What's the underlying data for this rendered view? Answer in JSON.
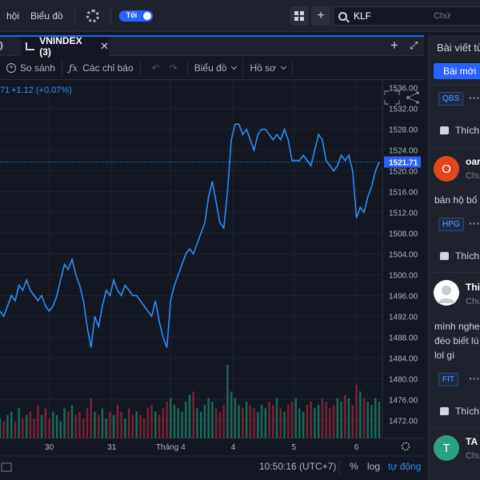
{
  "topbar": {
    "nav_hoi": "hội",
    "nav_bieudo": "Biểu đồ",
    "theme_toggle": "Tối",
    "search_value": "KLF",
    "search_hint": "Chứ"
  },
  "tabs": {
    "left_partial": ")",
    "active": "VNINDEX (3)",
    "close": "✕",
    "add": "+",
    "expand": "⤢"
  },
  "toolbar": {
    "compare": "So sánh",
    "indicators": "Các chỉ báo",
    "undo": "↶",
    "redo": "↷",
    "chart_type": "Biểu đồ",
    "profile": "Hồ sơ"
  },
  "legend": {
    "prefix": "71",
    "change": "+1.12 (+0.07%)"
  },
  "chart_data": {
    "type": "line",
    "symbol": "VNINDEX",
    "ylim": [
      1468.5,
      1537.5
    ],
    "y_ticks": [
      1536.0,
      1532.0,
      1528.0,
      1524.0,
      1520.0,
      1516.0,
      1512.0,
      1508.0,
      1504.0,
      1500.0,
      1496.0,
      1492.0,
      1488.0,
      1484.0,
      1480.0,
      1476.0,
      1472.0
    ],
    "x_ticks": [
      "30",
      "31",
      "Tháng 4",
      "4",
      "5",
      "6"
    ],
    "last_price_label": "1521.71",
    "last_price": 1521.71,
    "x_range": [
      0,
      100
    ],
    "x_tick_positions": [
      13,
      29.5,
      45,
      61.5,
      77.5,
      94
    ],
    "series": [
      {
        "x": [
          0,
          1,
          2,
          3,
          4,
          5,
          6,
          7,
          8,
          9,
          10,
          11,
          12,
          13,
          14,
          15,
          16,
          17,
          18,
          19,
          20,
          21,
          22,
          23,
          24,
          25,
          26,
          27,
          28,
          29,
          30,
          31,
          32,
          33,
          34,
          35,
          36,
          37,
          38,
          39,
          40,
          41,
          42,
          43,
          44,
          45,
          46,
          47,
          48,
          49,
          50,
          51,
          52,
          53,
          54,
          55,
          56,
          57,
          58,
          59,
          60,
          61,
          62,
          63,
          64,
          65,
          66,
          67,
          68,
          69,
          70,
          71,
          72,
          73,
          74,
          75,
          76,
          77,
          78,
          79,
          80,
          81,
          82,
          83,
          84,
          85,
          86,
          87,
          88,
          89,
          90,
          91,
          92,
          93,
          94,
          95,
          96,
          97,
          98,
          99,
          100
        ],
        "values": [
          1493,
          1492,
          1494,
          1496,
          1495,
          1498,
          1497,
          1499,
          1497,
          1496,
          1495,
          1496,
          1494,
          1493,
          1494,
          1496,
          1499,
          1502,
          1501,
          1503,
          1500,
          1498,
          1495,
          1490,
          1486,
          1492,
          1490,
          1494,
          1497,
          1496,
          1499,
          1497,
          1496,
          1498,
          1497,
          1496,
          1496,
          1495,
          1494,
          1493,
          1492,
          1495,
          1491,
          1488,
          1486,
          1495,
          1498,
          1500,
          1502,
          1504,
          1505,
          1504,
          1506,
          1508,
          1510,
          1515,
          1518,
          1514,
          1510,
          1509,
          1516,
          1526,
          1529,
          1529,
          1527,
          1528,
          1526,
          1524,
          1527,
          1528,
          1528,
          1527,
          1526,
          1527,
          1526,
          1528,
          1526,
          1522,
          1522,
          1522,
          1523,
          1522,
          1521,
          1524,
          1527,
          1526,
          1522,
          1521,
          1520,
          1521,
          1523,
          1522,
          1523,
          1520,
          1511,
          1513,
          1512,
          1515,
          1517,
          1520,
          1521.7
        ]
      }
    ],
    "volume_values": [
      6,
      5,
      7,
      8,
      5,
      9,
      6,
      7,
      8,
      6,
      10,
      7,
      9,
      6,
      8,
      7,
      5,
      9,
      8,
      10,
      7,
      8,
      6,
      9,
      12,
      8,
      7,
      9,
      6,
      8,
      7,
      10,
      8,
      6,
      9,
      7,
      8,
      7,
      6,
      9,
      10,
      8,
      7,
      9,
      11,
      12,
      10,
      9,
      8,
      11,
      13,
      14,
      9,
      8,
      10,
      12,
      11,
      9,
      8,
      10,
      22,
      14,
      12,
      10,
      9,
      11,
      10,
      9,
      8,
      10,
      9,
      11,
      10,
      12,
      9,
      8,
      10,
      11,
      12,
      9,
      8,
      10,
      11,
      9,
      10,
      12,
      11,
      9,
      10,
      12,
      11,
      13,
      12,
      10,
      16,
      14,
      12,
      11,
      10,
      12,
      11
    ]
  },
  "footer": {
    "time": "10:50:16 (UTC+7)",
    "percent": "%",
    "log": "log",
    "auto": "tự động"
  },
  "sidebar": {
    "title": "Bài viết từ",
    "new_posts": "Bài mới",
    "posts": [
      {
        "badge": "QBS",
        "like": "Thích"
      },
      {
        "avatar_letter": "O",
        "name": "oar",
        "sub": "Chu",
        "text": "bán hộ bố",
        "badge": "HPG",
        "like": "Thích"
      },
      {
        "name": "Thi",
        "sub": "Chu",
        "text_lines": [
          "mình nghe",
          "đéo biết lú",
          "lol gì"
        ],
        "badge": "FIT",
        "like": "Thích"
      },
      {
        "avatar_letter": "T",
        "name": "TA",
        "sub": "Chu"
      }
    ]
  },
  "colors": {
    "background": "#131722",
    "panel": "#1e222d",
    "accent": "#2962ff",
    "line": "#2f8ef5",
    "volume_up": "#1e8a6a",
    "volume_down": "#a0283a",
    "avatar_orange": "#e0461d",
    "avatar_teal": "#2aa27f"
  }
}
